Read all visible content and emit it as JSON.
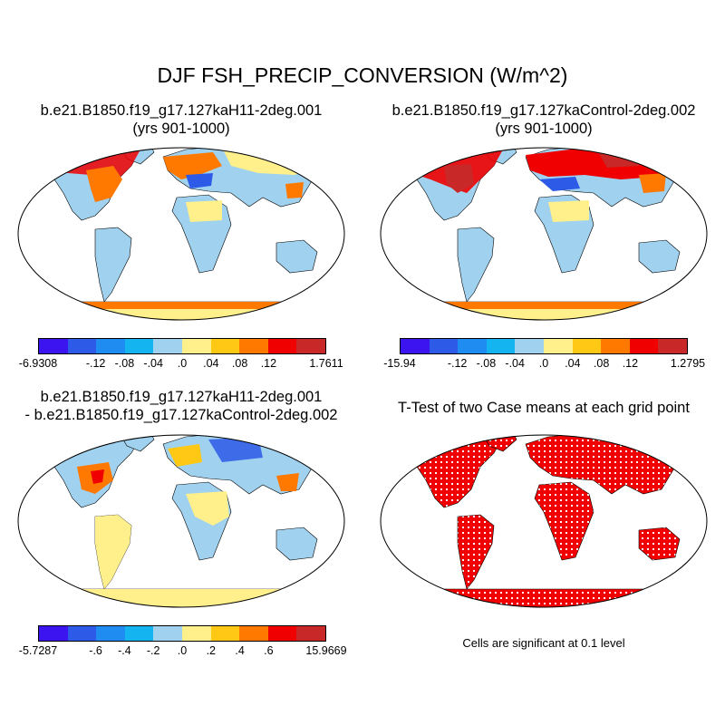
{
  "main_title": "DJF FSH_PRECIP_CONVERSION (W/m^2)",
  "panels": {
    "top_left": {
      "title_line1": "b.e21.B1850.f19_g17.127kaH11-2deg.001",
      "title_line2": "(yrs 901-1000)"
    },
    "top_right": {
      "title_line1": "b.e21.B1850.f19_g17.127kaControl-2deg.002",
      "title_line2": "(yrs 901-1000)"
    },
    "bottom_left": {
      "title_line1": "b.e21.B1850.f19_g17.127kaH11-2deg.001",
      "title_line2": "- b.e21.B1850.f19_g17.127kaControl-2deg.002"
    },
    "bottom_right": {
      "title_line1": "T-Test of two Case means at each grid point",
      "note": "Cells are significant at 0.1 level"
    }
  },
  "colorbars": {
    "colors": [
      "#3c14f0",
      "#2d5ae6",
      "#1e8cf0",
      "#14b4f0",
      "#a0d2f0",
      "#fff08c",
      "#ffc814",
      "#ff7800",
      "#f00000",
      "#c82828"
    ],
    "top_left": {
      "labels": [
        "-6.9308",
        "-.12",
        "-.08",
        "-.04",
        ".0",
        ".04",
        ".08",
        ".12",
        "1.7611"
      ]
    },
    "top_right": {
      "labels": [
        "-15.94",
        "-.12",
        "-.08",
        "-.04",
        ".0",
        ".04",
        ".08",
        ".12",
        "1.2795"
      ]
    },
    "bottom_left": {
      "labels": [
        "-5.7287",
        "-.6",
        "-.4",
        "-.2",
        ".0",
        ".2",
        ".4",
        ".6",
        "15.9669"
      ]
    }
  },
  "map_colors": {
    "land_base_top": "#a0d2f0",
    "land_base_diff": "#a0d2f0",
    "significance": "#f00000"
  }
}
